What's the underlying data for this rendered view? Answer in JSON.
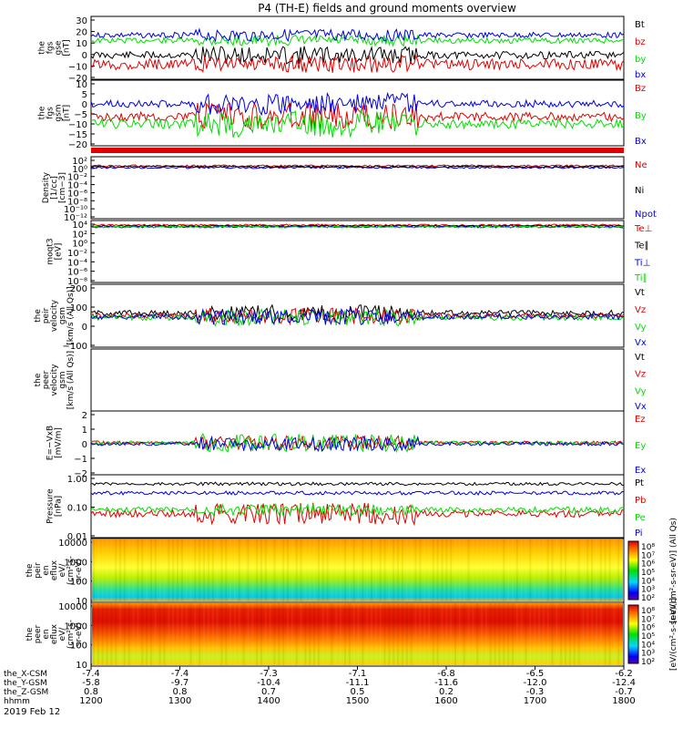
{
  "title": "P4 (TH-E) fields and ground moments overview",
  "footer": {
    "date": "2019 Feb 12",
    "row_labels": [
      "the_X-CSM",
      "the_Y-GSM",
      "the_Z-GSM",
      "hhmm"
    ],
    "columns": [
      {
        "x": "-7.4",
        "y": "-5.8",
        "z": "0.8",
        "hhmm": "1200"
      },
      {
        "x": "-7.4",
        "y": "-9.7",
        "z": "0.8",
        "hhmm": "1300"
      },
      {
        "x": "-7.3",
        "y": "-10.4",
        "z": "0.7",
        "hhmm": "1400"
      },
      {
        "x": "-7.1",
        "y": "-11.1",
        "z": "0.5",
        "hhmm": "1500"
      },
      {
        "x": "-6.8",
        "y": "-11.6",
        "z": "0.2",
        "hhmm": "1600"
      },
      {
        "x": "-6.5",
        "y": "-12.0",
        "z": "-0.3",
        "hhmm": "1700"
      },
      {
        "x": "-6.2",
        "y": "-12.4",
        "z": "-0.7",
        "hhmm": "1800"
      }
    ]
  },
  "colors": {
    "black": "#000000",
    "red": "#e00000",
    "green": "#00e000",
    "blue": "#0000e0"
  },
  "chart_data": [
    {
      "type": "line",
      "ylabel": [
        "the",
        "fgs",
        "gse",
        "[nT]"
      ],
      "ylim": [
        -20,
        30
      ],
      "yticks": [
        "30",
        "20",
        "10",
        "0",
        "−10",
        "−20"
      ],
      "series": [
        {
          "name": "Bt",
          "color": "black"
        },
        {
          "name": "bz",
          "color": "red"
        },
        {
          "name": "by",
          "color": "green"
        },
        {
          "name": "bx",
          "color": "blue"
        }
      ]
    },
    {
      "type": "line",
      "ylabel": [
        "the",
        "fgs",
        "gsm",
        "[nT]"
      ],
      "ylim": [
        -20,
        10
      ],
      "yticks": [
        "10",
        "5",
        "0",
        "−5",
        "−10",
        "−15",
        "−20"
      ],
      "series": [
        {
          "name": "Bz",
          "color": "red"
        },
        {
          "name": "By",
          "color": "green"
        },
        {
          "name": "Bx",
          "color": "blue"
        }
      ]
    },
    {
      "type": "line",
      "ylabel": [
        "Density",
        "[1/cc]",
        "[cm−3]"
      ],
      "scale": "log",
      "yticks": [
        "10²",
        "10⁰",
        "10⁻²",
        "10⁻⁴",
        "10⁻⁶",
        "10⁻⁸",
        "10⁻¹⁰",
        "10⁻¹²"
      ],
      "series": [
        {
          "name": "Ne",
          "color": "red"
        },
        {
          "name": "Ni",
          "color": "black"
        },
        {
          "name": "Npot",
          "color": "blue"
        }
      ]
    },
    {
      "type": "line",
      "ylabel": [
        "moqt3",
        "[eV]"
      ],
      "scale": "log",
      "yticks": [
        "10⁴",
        "10²",
        "10⁰",
        "10⁻²",
        "10⁻⁴",
        "10⁻⁶",
        "10⁻⁸"
      ],
      "series": [
        {
          "name": "Te⊥",
          "color": "red"
        },
        {
          "name": "Te∥",
          "color": "black"
        },
        {
          "name": "Ti⊥",
          "color": "blue"
        },
        {
          "name": "Ti∥",
          "color": "green"
        }
      ]
    },
    {
      "type": "line",
      "ylabel": [
        "the",
        "peir",
        "velocity",
        "gsm",
        "[km/s (All Qs)]"
      ],
      "ylim": [
        -150,
        200
      ],
      "yticks": [
        "200",
        "100",
        "0",
        "−100"
      ],
      "series": [
        {
          "name": "Vt",
          "color": "black"
        },
        {
          "name": "Vz",
          "color": "red"
        },
        {
          "name": "Vy",
          "color": "green"
        },
        {
          "name": "Vx",
          "color": "blue"
        }
      ]
    },
    {
      "type": "line",
      "ylabel": [
        "the",
        "peer",
        "velocity",
        "gsm",
        "[km/s (All Qs)]"
      ],
      "yticks": [],
      "series": [
        {
          "name": "Vt",
          "color": "black"
        },
        {
          "name": "Vz",
          "color": "red"
        },
        {
          "name": "Vy",
          "color": "green"
        },
        {
          "name": "Vx",
          "color": "blue"
        }
      ]
    },
    {
      "type": "line",
      "ylabel": [
        "E=−VxB",
        "[mV/m]"
      ],
      "ylim": [
        -3,
        3
      ],
      "yticks": [
        "2",
        "1",
        "0",
        "−1",
        "−2"
      ],
      "series": [
        {
          "name": "Ez",
          "color": "red"
        },
        {
          "name": "Ey",
          "color": "green"
        },
        {
          "name": "Ex",
          "color": "blue"
        }
      ]
    },
    {
      "type": "line",
      "ylabel": [
        "Pressure",
        "[nPa]"
      ],
      "scale": "log",
      "yticks": [
        "1.00",
        "0.10",
        "0.01"
      ],
      "series": [
        {
          "name": "Pt",
          "color": "black"
        },
        {
          "name": "Pb",
          "color": "red"
        },
        {
          "name": "Pe",
          "color": "green"
        },
        {
          "name": "Pi",
          "color": "blue"
        }
      ]
    },
    {
      "type": "heatmap",
      "ylabel": [
        "the",
        "peir",
        "en",
        "eflux",
        "eV/",
        "(cm²-s-",
        "sr-eV)"
      ],
      "scale": "log",
      "yticks": [
        "10000",
        "1000",
        "100",
        "10"
      ],
      "colorbar": {
        "ticks": [
          "10⁸",
          "10⁷",
          "10⁶",
          "10⁵",
          "10⁴",
          "10³",
          "10²"
        ],
        "label": "[eV/(cm²-s-sr-eV)] (All Qs)"
      }
    },
    {
      "type": "heatmap",
      "ylabel": [
        "the",
        "peer",
        "en",
        "eflux",
        "eV/",
        "(cm²-s-",
        "sr-eV)"
      ],
      "scale": "log",
      "yticks": [
        "10000",
        "1000",
        "100",
        "10"
      ],
      "colorbar": {
        "ticks": [
          "10⁸",
          "10⁷",
          "10⁶",
          "10⁵",
          "10⁴",
          "10³",
          "10²"
        ],
        "label": "[eV/(cm²-s-sr-eV)]"
      }
    }
  ]
}
